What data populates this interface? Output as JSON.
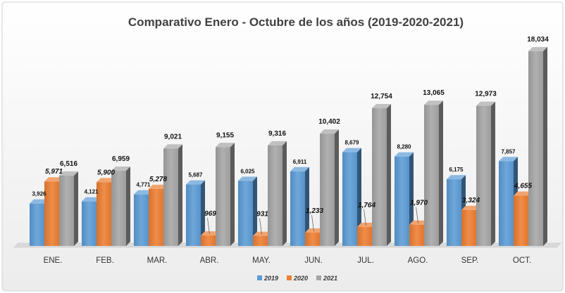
{
  "chart_data": {
    "type": "bar",
    "title": "Comparativo Enero - Octubre de los años (2019-2020-2021)",
    "xlabel": "",
    "ylabel": "",
    "ylim": [
      0,
      19000
    ],
    "grid": false,
    "legend_position": "bottom",
    "categories": [
      "ENE.",
      "FEB.",
      "MAR.",
      "ABR.",
      "MAY.",
      "JUN.",
      "JUL.",
      "AGO.",
      "SEP.",
      "OCT."
    ],
    "series": [
      {
        "name": "2019",
        "color": "#5b9bd5",
        "values": [
          3926,
          4121,
          4771,
          5687,
          6025,
          6911,
          8679,
          8280,
          6175,
          7857
        ],
        "labels": [
          "3,926",
          "4,121",
          "4,771",
          "5,687",
          "6,025",
          "6,911",
          "8,679",
          "8,280",
          "6,175",
          "7,857"
        ]
      },
      {
        "name": "2020",
        "color": "#ed7d31",
        "values": [
          5971,
          5900,
          5278,
          969,
          931,
          1233,
          1764,
          1970,
          3324,
          4655
        ],
        "labels": [
          "5,971",
          "5,900",
          "5,278",
          "969",
          "931",
          "1,233",
          "1,764",
          "1,970",
          "3,324",
          "4,655"
        ]
      },
      {
        "name": "2021",
        "color": "#a5a5a5",
        "values": [
          6516,
          6959,
          9021,
          9155,
          9316,
          10402,
          12754,
          13065,
          12973,
          18034
        ],
        "labels": [
          "6,516",
          "6,959",
          "9,021",
          "9,155",
          "9,316",
          "10,402",
          "12,754",
          "13,065",
          "12,973",
          "18,034"
        ]
      }
    ]
  }
}
